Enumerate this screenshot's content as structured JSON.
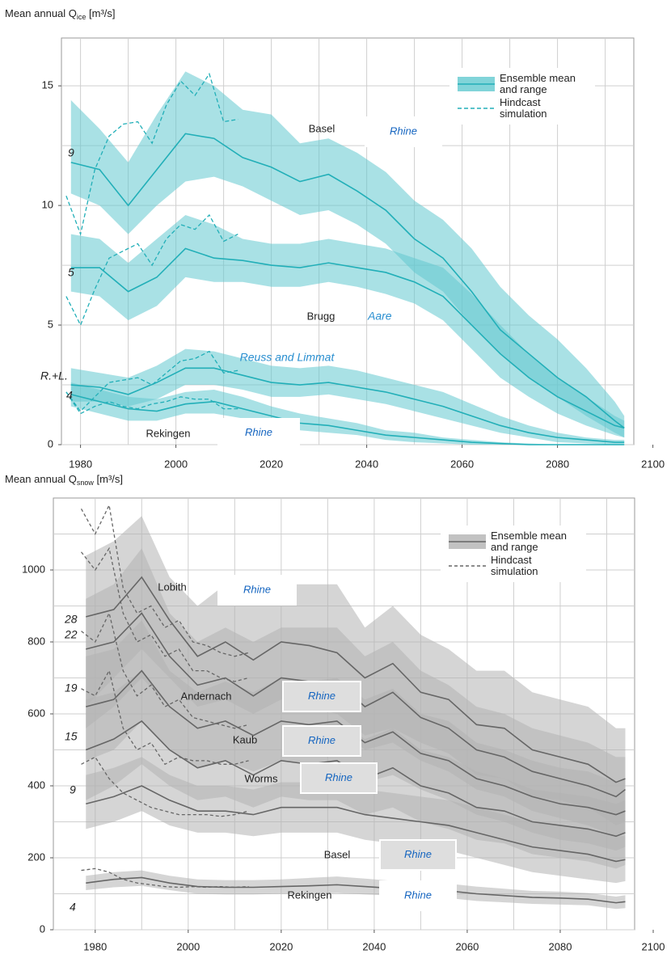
{
  "chart_data": [
    {
      "type": "band-line",
      "title": {
        "main": "Mean annual Q",
        "sub": "ice",
        "unit": " [m³/s]"
      },
      "x": [
        1978,
        1984,
        1990,
        1996,
        2002,
        2008,
        2014,
        2020,
        2026,
        2032,
        2038,
        2044,
        2050,
        2056,
        2062,
        2068,
        2074,
        2080,
        2086,
        2092,
        2094
      ],
      "hindcast_x": [
        1977,
        1980,
        1983,
        1986,
        1989,
        1992,
        1995,
        1998,
        2001,
        2004,
        2007,
        2010,
        2013
      ],
      "xlim": [
        1976,
        2096
      ],
      "xticks": [
        1980,
        2000,
        2020,
        2040,
        2060,
        2080,
        2100
      ],
      "xminor": [
        1990,
        2010,
        2030,
        2050,
        2070,
        2090
      ],
      "ylim": [
        0,
        17
      ],
      "yticks": [
        0,
        5,
        10,
        15
      ],
      "yminor": [
        2.5,
        7.5,
        12.5
      ],
      "line_color": "#22afb8",
      "band_color": "#62c9cf",
      "legend": {
        "ensemble": "Ensemble mean and range",
        "hindcast": "Hindcast simulation",
        "position": "upper right"
      },
      "series": [
        {
          "station": "Basel",
          "river": "Rhine",
          "start_label": "9",
          "values": [
            11.8,
            11.5,
            10.0,
            11.5,
            13.0,
            12.8,
            12.0,
            11.6,
            11.0,
            11.3,
            10.6,
            9.8,
            8.6,
            7.8,
            6.4,
            4.8,
            3.8,
            2.8,
            2.0,
            1.0,
            0.7
          ],
          "low": [
            10.5,
            10.0,
            8.8,
            10.0,
            11.0,
            11.2,
            10.8,
            10.2,
            9.6,
            9.8,
            9.2,
            8.4,
            7.2,
            6.4,
            5.0,
            3.8,
            2.8,
            2.0,
            1.2,
            0.5,
            0.3
          ],
          "high": [
            14.4,
            13.2,
            11.8,
            13.8,
            15.6,
            15.0,
            14.0,
            13.8,
            12.6,
            12.8,
            12.2,
            11.4,
            10.2,
            9.4,
            8.2,
            6.6,
            5.4,
            4.4,
            3.2,
            1.8,
            1.2
          ],
          "hindcast": [
            10.4,
            8.8,
            11.5,
            12.9,
            13.4,
            13.5,
            12.6,
            14.2,
            15.2,
            14.6,
            15.5,
            13.5,
            13.6
          ]
        },
        {
          "station": "Brugg",
          "river": "Aare",
          "start_label": "5",
          "values": [
            7.4,
            7.4,
            6.4,
            7.0,
            8.2,
            7.8,
            7.7,
            7.5,
            7.4,
            7.6,
            7.4,
            7.2,
            6.8,
            6.2,
            5.0,
            3.8,
            2.8,
            2.0,
            1.4,
            0.8,
            0.7
          ],
          "low": [
            6.4,
            6.2,
            5.2,
            5.8,
            7.0,
            6.8,
            6.8,
            6.6,
            6.6,
            6.8,
            6.6,
            6.3,
            5.9,
            5.2,
            4.0,
            2.8,
            2.0,
            1.3,
            0.8,
            0.4,
            0.3
          ],
          "high": [
            8.8,
            8.6,
            7.6,
            8.6,
            9.6,
            9.2,
            8.6,
            8.4,
            8.4,
            8.6,
            8.4,
            8.2,
            7.8,
            7.4,
            6.3,
            5.0,
            3.8,
            2.8,
            2.0,
            1.2,
            1.0
          ],
          "hindcast": [
            6.2,
            5.0,
            6.5,
            7.8,
            8.1,
            8.4,
            7.5,
            8.6,
            9.2,
            9.0,
            9.6,
            8.5,
            8.8
          ]
        },
        {
          "river": "Reuss and Limmat",
          "start_label": "R.+L.",
          "values": [
            2.5,
            2.4,
            2.1,
            2.6,
            3.2,
            3.2,
            2.9,
            2.6,
            2.5,
            2.6,
            2.4,
            2.2,
            1.9,
            1.6,
            1.2,
            0.8,
            0.5,
            0.3,
            0.2,
            0.1,
            0.1
          ],
          "low": [
            1.8,
            1.8,
            1.6,
            1.9,
            2.5,
            2.5,
            2.3,
            2.0,
            2.0,
            2.1,
            1.9,
            1.7,
            1.4,
            1.1,
            0.8,
            0.5,
            0.3,
            0.1,
            0.05,
            0,
            0
          ],
          "high": [
            3.2,
            3.0,
            2.8,
            3.3,
            4.0,
            3.9,
            3.6,
            3.3,
            3.2,
            3.3,
            3.1,
            2.8,
            2.5,
            2.2,
            1.7,
            1.2,
            0.8,
            0.5,
            0.3,
            0.2,
            0.2
          ],
          "hindcast": [
            2.2,
            1.4,
            2.0,
            2.6,
            2.7,
            2.8,
            2.5,
            3.0,
            3.5,
            3.6,
            3.9,
            3.0,
            3.1
          ]
        },
        {
          "station": "Rekingen",
          "river": "Rhine",
          "start_label": "4",
          "values": [
            2.1,
            1.8,
            1.5,
            1.4,
            1.7,
            1.8,
            1.5,
            1.2,
            0.9,
            0.8,
            0.6,
            0.4,
            0.3,
            0.2,
            0.1,
            0.05,
            0,
            0,
            0,
            0,
            0
          ],
          "low": [
            1.6,
            1.3,
            1.0,
            1.0,
            1.3,
            1.3,
            1.1,
            0.8,
            0.6,
            0.5,
            0.4,
            0.2,
            0.1,
            0.05,
            0,
            0,
            0,
            0,
            0,
            0,
            0
          ],
          "high": [
            2.6,
            2.3,
            2.0,
            1.9,
            2.2,
            2.3,
            2.0,
            1.6,
            1.3,
            1.1,
            0.9,
            0.6,
            0.5,
            0.3,
            0.2,
            0.1,
            0.05,
            0,
            0,
            0,
            0
          ],
          "hindcast": [
            2.2,
            1.3,
            1.6,
            1.8,
            1.6,
            1.5,
            1.7,
            1.8,
            2.0,
            1.9,
            1.9,
            1.5,
            1.5
          ]
        }
      ]
    },
    {
      "type": "band-line",
      "title": {
        "main": "Mean annual Q",
        "sub": "snow",
        "unit": " [m³/s]"
      },
      "x": [
        1978,
        1984,
        1990,
        1996,
        2002,
        2008,
        2014,
        2020,
        2026,
        2032,
        2038,
        2044,
        2050,
        2056,
        2062,
        2068,
        2074,
        2080,
        2086,
        2092,
        2094
      ],
      "hindcast_x": [
        1977,
        1980,
        1983,
        1986,
        1989,
        1992,
        1995,
        1998,
        2001,
        2004,
        2007,
        2010,
        2013
      ],
      "xlim": [
        1971,
        2096
      ],
      "xticks": [
        1980,
        2000,
        2020,
        2040,
        2060,
        2080,
        2100
      ],
      "xminor": [
        1990,
        2010,
        2030,
        2050,
        2070,
        2090
      ],
      "ylim": [
        0,
        1200
      ],
      "yticks": [
        0,
        200,
        400,
        600,
        800,
        1000
      ],
      "yminor": [
        100,
        300,
        500,
        700,
        900,
        1100
      ],
      "line_color": "#666666",
      "band_color": "#b3b3b3",
      "legend": {
        "ensemble": "Ensemble mean and range",
        "hindcast": "Hindcast simulation",
        "position": "upper right"
      },
      "series": [
        {
          "station": "Lobith",
          "river": "Rhine",
          "start_label": "28",
          "values": [
            870,
            890,
            980,
            860,
            760,
            800,
            750,
            800,
            790,
            770,
            700,
            740,
            660,
            640,
            570,
            560,
            500,
            480,
            460,
            410,
            420
          ],
          "low": [
            620,
            700,
            780,
            700,
            620,
            640,
            600,
            640,
            620,
            600,
            540,
            560,
            520,
            490,
            430,
            420,
            370,
            360,
            340,
            290,
            300
          ],
          "high": [
            1040,
            1080,
            1150,
            980,
            900,
            960,
            940,
            960,
            960,
            960,
            840,
            900,
            820,
            780,
            720,
            720,
            660,
            640,
            620,
            560,
            560
          ],
          "hindcast": [
            1170,
            1100,
            1180,
            950,
            880,
            900,
            840,
            860,
            800,
            790,
            770,
            760,
            770
          ]
        },
        {
          "station": "Andernach",
          "river": "Rhine",
          "start_label": "22",
          "values": [
            780,
            800,
            880,
            760,
            680,
            700,
            650,
            700,
            690,
            690,
            620,
            660,
            590,
            560,
            500,
            480,
            440,
            420,
            400,
            370,
            390
          ],
          "low": [
            560,
            620,
            700,
            620,
            560,
            580,
            540,
            580,
            570,
            560,
            500,
            520,
            470,
            440,
            390,
            370,
            330,
            310,
            290,
            260,
            270
          ],
          "high": [
            920,
            960,
            1060,
            880,
            800,
            840,
            800,
            840,
            840,
            840,
            760,
            800,
            720,
            680,
            620,
            600,
            560,
            540,
            520,
            480,
            480
          ],
          "hindcast": [
            1050,
            1000,
            1060,
            880,
            800,
            820,
            760,
            780,
            720,
            720,
            700,
            690,
            700
          ]
        },
        {
          "station": "Kaub",
          "river": "Rhine",
          "start_label": "19",
          "values": [
            620,
            640,
            720,
            620,
            560,
            580,
            540,
            580,
            570,
            580,
            520,
            550,
            490,
            470,
            420,
            400,
            370,
            350,
            340,
            320,
            330
          ],
          "low": [
            470,
            500,
            580,
            500,
            450,
            470,
            440,
            470,
            460,
            460,
            410,
            430,
            390,
            360,
            320,
            300,
            270,
            250,
            240,
            220,
            230
          ],
          "high": [
            760,
            780,
            860,
            720,
            660,
            690,
            660,
            700,
            690,
            700,
            640,
            670,
            600,
            580,
            520,
            500,
            470,
            450,
            440,
            410,
            420
          ],
          "hindcast": [
            830,
            800,
            880,
            720,
            650,
            680,
            620,
            640,
            590,
            580,
            570,
            560,
            570
          ]
        },
        {
          "station": "Worms",
          "river": "Rhine",
          "start_label": "15",
          "values": [
            500,
            530,
            580,
            500,
            450,
            470,
            430,
            470,
            460,
            470,
            420,
            450,
            400,
            380,
            340,
            330,
            300,
            290,
            280,
            260,
            270
          ],
          "low": [
            360,
            400,
            460,
            400,
            360,
            370,
            340,
            370,
            360,
            360,
            320,
            340,
            300,
            280,
            250,
            240,
            210,
            200,
            190,
            170,
            180
          ],
          "high": [
            640,
            660,
            720,
            620,
            560,
            580,
            540,
            580,
            570,
            580,
            530,
            560,
            500,
            480,
            440,
            420,
            390,
            380,
            370,
            350,
            360
          ],
          "hindcast": [
            670,
            650,
            720,
            560,
            500,
            520,
            460,
            480,
            470,
            470,
            460,
            460,
            470
          ]
        },
        {
          "station": "Basel",
          "river": "Rhine",
          "start_label": "9",
          "values": [
            350,
            370,
            400,
            360,
            330,
            330,
            320,
            340,
            340,
            340,
            320,
            310,
            300,
            290,
            270,
            250,
            230,
            220,
            210,
            190,
            195
          ],
          "low": [
            280,
            300,
            330,
            290,
            270,
            270,
            260,
            270,
            270,
            270,
            250,
            240,
            230,
            220,
            200,
            180,
            160,
            150,
            140,
            130,
            135
          ],
          "high": [
            430,
            450,
            480,
            430,
            400,
            400,
            390,
            410,
            410,
            410,
            390,
            380,
            370,
            360,
            340,
            320,
            300,
            290,
            280,
            260,
            260
          ],
          "hindcast": [
            460,
            480,
            420,
            380,
            360,
            340,
            330,
            320,
            320,
            320,
            315,
            320,
            330
          ]
        },
        {
          "station": "Rekingen",
          "river": "Rhine",
          "start_label": "4",
          "values": [
            130,
            140,
            145,
            130,
            120,
            118,
            118,
            120,
            122,
            125,
            120,
            115,
            110,
            108,
            100,
            95,
            90,
            88,
            85,
            75,
            78
          ],
          "low": [
            110,
            118,
            122,
            110,
            100,
            98,
            98,
            100,
            100,
            102,
            98,
            95,
            90,
            88,
            80,
            76,
            72,
            70,
            68,
            58,
            60
          ],
          "high": [
            150,
            160,
            165,
            150,
            140,
            138,
            138,
            140,
            144,
            148,
            142,
            136,
            130,
            128,
            120,
            114,
            108,
            106,
            102,
            92,
            96
          ],
          "hindcast": [
            165,
            170,
            160,
            140,
            130,
            125,
            120,
            118,
            120,
            118,
            120,
            118,
            120
          ]
        }
      ]
    }
  ]
}
